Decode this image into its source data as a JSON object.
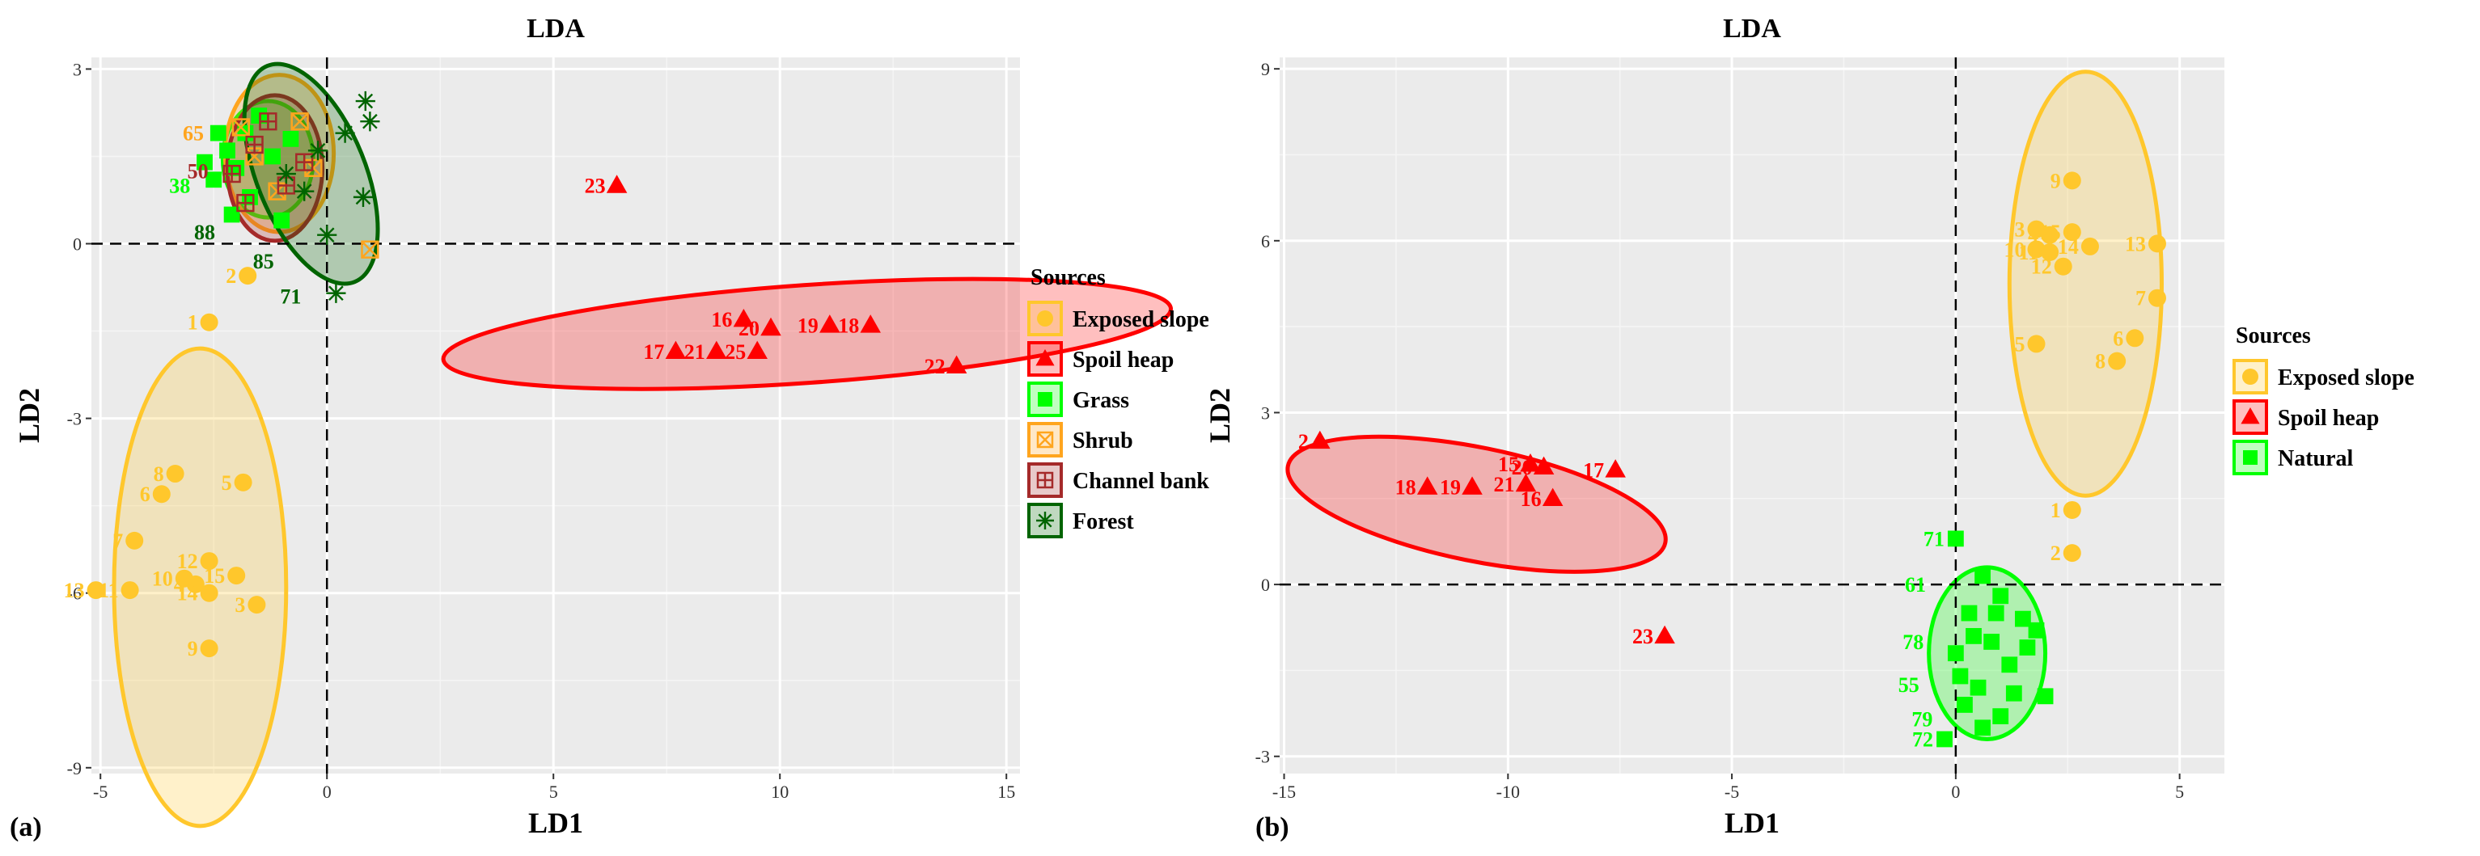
{
  "chart_data": [
    {
      "type": "scatter",
      "panel_label": "(a)",
      "title": "LDA",
      "xlabel": "LD1",
      "ylabel": "LD2",
      "xlim": [
        -5.2,
        15.3
      ],
      "ylim": [
        -9.1,
        3.2
      ],
      "xticks": [
        -5,
        0,
        5,
        10,
        15
      ],
      "yticks": [
        -9,
        -6,
        -3,
        0,
        3
      ],
      "xtick_labels": [
        "-5",
        "0",
        "5",
        "10",
        "15"
      ],
      "ytick_labels": [
        "-9",
        "-6",
        "-3",
        "0",
        "3"
      ],
      "legend_title": "Sources",
      "legend_position": "right",
      "series": [
        {
          "name": "Exposed slope",
          "color": "#FFC72C",
          "marker": "circle",
          "ellipse": {
            "cx": -2.8,
            "cy": -5.9,
            "rx": 1.9,
            "ry": 4.1,
            "angle": 0
          },
          "points": [
            {
              "x": -2.6,
              "y": -1.35,
              "label": "1"
            },
            {
              "x": -1.75,
              "y": -0.55,
              "label": "2"
            },
            {
              "x": -1.55,
              "y": -6.2,
              "label": "3"
            },
            {
              "x": -2.9,
              "y": -5.85,
              "label": "4"
            },
            {
              "x": -1.85,
              "y": -4.1,
              "label": "5"
            },
            {
              "x": -3.65,
              "y": -4.3,
              "label": "6"
            },
            {
              "x": -4.25,
              "y": -5.1,
              "label": "7"
            },
            {
              "x": -3.35,
              "y": -3.95,
              "label": "8"
            },
            {
              "x": -2.6,
              "y": -6.95,
              "label": "9"
            },
            {
              "x": -3.15,
              "y": -5.75,
              "label": "10"
            },
            {
              "x": -4.35,
              "y": -5.95,
              "label": "11"
            },
            {
              "x": -2.6,
              "y": -5.45,
              "label": "12"
            },
            {
              "x": -5.1,
              "y": -5.95,
              "label": "13"
            },
            {
              "x": -2.6,
              "y": -6.0,
              "label": "14"
            },
            {
              "x": -2.0,
              "y": -5.7,
              "label": "15"
            }
          ]
        },
        {
          "name": "Spoil heap",
          "color": "#FF0000",
          "marker": "triangle",
          "ellipse": {
            "cx": 10.6,
            "cy": -1.55,
            "rx": 8.05,
            "ry": 0.84,
            "angle": 4
          },
          "points": [
            {
              "x": 7.7,
              "y": -1.85,
              "label": "17"
            },
            {
              "x": 8.6,
              "y": -1.85,
              "label": "21"
            },
            {
              "x": 9.2,
              "y": -1.3,
              "label": "16"
            },
            {
              "x": 9.8,
              "y": -1.45,
              "label": "20"
            },
            {
              "x": 9.5,
              "y": -1.85,
              "label": "25"
            },
            {
              "x": 11.1,
              "y": -1.4,
              "label": "19"
            },
            {
              "x": 12.0,
              "y": -1.4,
              "label": "18"
            },
            {
              "x": 13.9,
              "y": -2.1,
              "label": "22"
            },
            {
              "x": 6.4,
              "y": 1.0,
              "label": "23"
            }
          ]
        },
        {
          "name": "Grass",
          "color": "#00FF00",
          "marker": "square",
          "ellipse": {
            "cx": -1.3,
            "cy": 1.45,
            "rx": 1.0,
            "ry": 1.0,
            "angle": 0
          },
          "points": [
            {
              "x": -2.4,
              "y": 1.9
            },
            {
              "x": -2.2,
              "y": 1.6
            },
            {
              "x": -2.0,
              "y": 1.3
            },
            {
              "x": -2.5,
              "y": 1.1
            },
            {
              "x": -1.8,
              "y": 1.9
            },
            {
              "x": -1.5,
              "y": 2.2
            },
            {
              "x": -1.2,
              "y": 1.5
            },
            {
              "x": -1.7,
              "y": 0.8
            },
            {
              "x": -2.7,
              "y": 1.4
            },
            {
              "x": -1.0,
              "y": 0.4
            },
            {
              "x": -2.1,
              "y": 0.5
            },
            {
              "x": -0.8,
              "y": 1.8
            }
          ]
        },
        {
          "name": "Shrub",
          "color": "#FFA51E",
          "marker": "square-x",
          "ellipse": {
            "cx": -1.05,
            "cy": 1.55,
            "rx": 1.2,
            "ry": 1.35,
            "angle": 0
          },
          "points": [
            {
              "x": 0.95,
              "y": -0.1
            },
            {
              "x": -1.6,
              "y": 1.5
            },
            {
              "x": -0.6,
              "y": 2.1
            },
            {
              "x": -1.1,
              "y": 0.9
            },
            {
              "x": -0.3,
              "y": 1.3
            },
            {
              "x": -1.9,
              "y": 2.0
            }
          ]
        },
        {
          "name": "Channel bank",
          "color": "#A52A2A",
          "marker": "square-plus",
          "ellipse": {
            "cx": -1.15,
            "cy": 1.3,
            "rx": 1.05,
            "ry": 1.25,
            "angle": 0
          },
          "points": [
            {
              "x": -2.1,
              "y": 1.2
            },
            {
              "x": -1.6,
              "y": 1.7
            },
            {
              "x": -0.9,
              "y": 1.0
            },
            {
              "x": -1.3,
              "y": 2.1
            },
            {
              "x": -0.5,
              "y": 1.4
            },
            {
              "x": -1.8,
              "y": 0.7
            }
          ]
        },
        {
          "name": "Forest",
          "color": "#006400",
          "marker": "asterisk",
          "ellipse": {
            "cx": -0.35,
            "cy": 1.2,
            "rx": 1.2,
            "ry": 2.0,
            "angle": 22
          },
          "points": [
            {
              "x": 0.85,
              "y": 2.45
            },
            {
              "x": 0.95,
              "y": 2.1
            },
            {
              "x": 0.8,
              "y": 0.8
            },
            {
              "x": 0.2,
              "y": -0.85
            },
            {
              "x": -0.2,
              "y": 1.6
            },
            {
              "x": -0.5,
              "y": 0.9
            },
            {
              "x": 0.0,
              "y": 0.15
            },
            {
              "x": -0.9,
              "y": 1.2
            },
            {
              "x": 0.4,
              "y": 1.9
            }
          ]
        }
      ],
      "annotations": [
        {
          "text": "65",
          "x": -2.95,
          "y": 1.9,
          "color": "#FFA51E"
        },
        {
          "text": "50",
          "x": -2.85,
          "y": 1.25,
          "color": "#A52A2A"
        },
        {
          "text": "38",
          "x": -3.25,
          "y": 1.0,
          "color": "#00FF00"
        },
        {
          "text": "88",
          "x": -2.7,
          "y": 0.2,
          "color": "#006400"
        },
        {
          "text": "85",
          "x": -1.4,
          "y": -0.3,
          "color": "#006400"
        },
        {
          "text": "71",
          "x": -0.8,
          "y": -0.9,
          "color": "#006400"
        }
      ]
    },
    {
      "type": "scatter",
      "panel_label": "(b)",
      "title": "LDA",
      "xlabel": "LD1",
      "ylabel": "LD2",
      "xlim": [
        -15.1,
        6.0
      ],
      "ylim": [
        -3.3,
        9.2
      ],
      "xticks": [
        -15,
        -10,
        -5,
        0,
        5
      ],
      "yticks": [
        -3,
        0,
        3,
        6,
        9
      ],
      "xtick_labels": [
        "-15",
        "-10",
        "-5",
        "0",
        "5"
      ],
      "ytick_labels": [
        "-3",
        "0",
        "3",
        "6",
        "9"
      ],
      "legend_title": "Sources",
      "legend_position": "right",
      "series": [
        {
          "name": "Exposed slope",
          "color": "#FFC72C",
          "marker": "circle",
          "ellipse": {
            "cx": 2.9,
            "cy": 5.25,
            "rx": 1.7,
            "ry": 3.7,
            "angle": 0
          },
          "points": [
            {
              "x": 2.6,
              "y": 1.3,
              "label": "1"
            },
            {
              "x": 2.6,
              "y": 0.55,
              "label": "2"
            },
            {
              "x": 1.8,
              "y": 6.2,
              "label": "3"
            },
            {
              "x": 2.1,
              "y": 6.1,
              "label": "4"
            },
            {
              "x": 1.8,
              "y": 4.2,
              "label": "5"
            },
            {
              "x": 4.0,
              "y": 4.3,
              "label": "6"
            },
            {
              "x": 4.5,
              "y": 5.0,
              "label": "7"
            },
            {
              "x": 3.6,
              "y": 3.9,
              "label": "8"
            },
            {
              "x": 2.6,
              "y": 7.05,
              "label": "9"
            },
            {
              "x": 1.8,
              "y": 5.85,
              "label": "10"
            },
            {
              "x": 2.1,
              "y": 5.8,
              "label": "11"
            },
            {
              "x": 2.4,
              "y": 5.55,
              "label": "12"
            },
            {
              "x": 4.5,
              "y": 5.95,
              "label": "13"
            },
            {
              "x": 3.0,
              "y": 5.9,
              "label": "14"
            },
            {
              "x": 2.6,
              "y": 6.15,
              "label": "15"
            }
          ]
        },
        {
          "name": "Spoil heap",
          "color": "#FF0000",
          "marker": "triangle",
          "ellipse": {
            "cx": -10.7,
            "cy": 1.4,
            "rx": 4.3,
            "ry": 0.99,
            "angle": -11.5
          },
          "points": [
            {
              "x": -14.2,
              "y": 2.5,
              "label": "2"
            },
            {
              "x": -11.8,
              "y": 1.7,
              "label": "18"
            },
            {
              "x": -10.8,
              "y": 1.7,
              "label": "19"
            },
            {
              "x": -9.5,
              "y": 2.1,
              "label": "15"
            },
            {
              "x": -9.6,
              "y": 1.75,
              "label": "21"
            },
            {
              "x": -9.2,
              "y": 2.05,
              "label": "20"
            },
            {
              "x": -9.0,
              "y": 1.5,
              "label": "16"
            },
            {
              "x": -7.6,
              "y": 2.0,
              "label": "17"
            },
            {
              "x": -6.5,
              "y": -0.9,
              "label": "23"
            }
          ]
        },
        {
          "name": "Natural",
          "color": "#00FF00",
          "marker": "square",
          "ellipse": {
            "cx": 0.7,
            "cy": -1.2,
            "rx": 1.3,
            "ry": 1.5,
            "angle": 0
          },
          "points": [
            {
              "x": 0.0,
              "y": 0.8,
              "label": "71"
            },
            {
              "x": -0.25,
              "y": -2.7,
              "label": "72"
            },
            {
              "x": 0.6,
              "y": 0.15
            },
            {
              "x": 2.0,
              "y": -1.95
            },
            {
              "x": 1.0,
              "y": -0.2
            },
            {
              "x": 1.5,
              "y": -0.6
            },
            {
              "x": 0.3,
              "y": -0.5
            },
            {
              "x": 0.8,
              "y": -1.0
            },
            {
              "x": 1.2,
              "y": -1.4
            },
            {
              "x": 0.0,
              "y": -1.2
            },
            {
              "x": 0.5,
              "y": -1.8
            },
            {
              "x": 1.6,
              "y": -1.1
            },
            {
              "x": 0.2,
              "y": -2.1
            },
            {
              "x": 1.0,
              "y": -2.3
            },
            {
              "x": 0.4,
              "y": -0.9
            },
            {
              "x": 1.8,
              "y": -0.8
            },
            {
              "x": 0.9,
              "y": -0.5
            },
            {
              "x": 0.1,
              "y": -1.6
            },
            {
              "x": 1.3,
              "y": -1.9
            },
            {
              "x": 0.6,
              "y": -2.5
            }
          ]
        }
      ],
      "annotations": [
        {
          "text": "61",
          "x": -0.9,
          "y": 0.0,
          "color": "#00FF00"
        },
        {
          "text": "78",
          "x": -0.95,
          "y": -1.0,
          "color": "#00FF00"
        },
        {
          "text": "55",
          "x": -1.05,
          "y": -1.75,
          "color": "#00FF00"
        },
        {
          "text": "79",
          "x": -0.75,
          "y": -2.35,
          "color": "#00FF00"
        }
      ]
    }
  ]
}
